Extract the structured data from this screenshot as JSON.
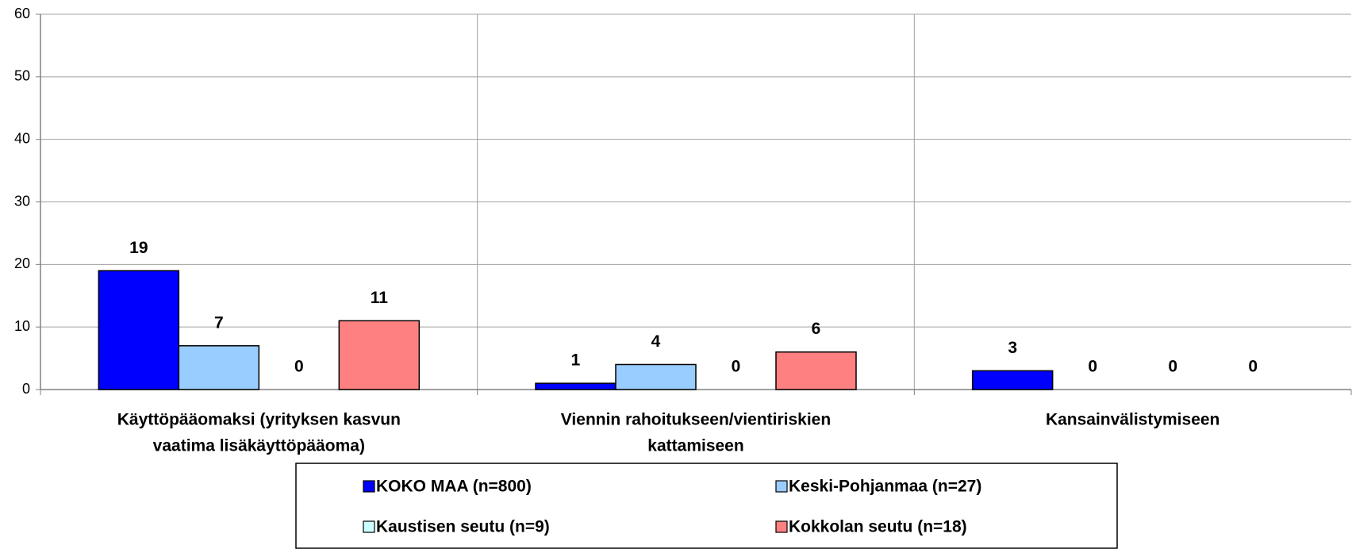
{
  "chart_data": {
    "type": "bar",
    "categories": [
      [
        "Käyttöpääomaksi (yrityksen kasvun",
        "vaatima lisäkäyttöpääoma)"
      ],
      [
        "Viennin rahoitukseen/vientiriskien",
        "kattamiseen"
      ],
      [
        "Kansainvälistymiseen"
      ]
    ],
    "series": [
      {
        "name": "KOKO MAA (n=800)",
        "color": "#0000ff",
        "values": [
          19,
          1,
          3
        ]
      },
      {
        "name": "Keski-Pohjanmaa (n=27)",
        "color": "#99ccff",
        "values": [
          7,
          4,
          0
        ]
      },
      {
        "name": "Kaustisen seutu (n=9)",
        "color": "#ccffff",
        "values": [
          0,
          0,
          0
        ]
      },
      {
        "name": "Kokkolan seutu (n=18)",
        "color": "#ff8080",
        "values": [
          11,
          6,
          0
        ]
      }
    ],
    "ylim": [
      0,
      60
    ],
    "yticks": [
      0,
      10,
      20,
      30,
      40,
      50,
      60
    ],
    "grid": true
  }
}
